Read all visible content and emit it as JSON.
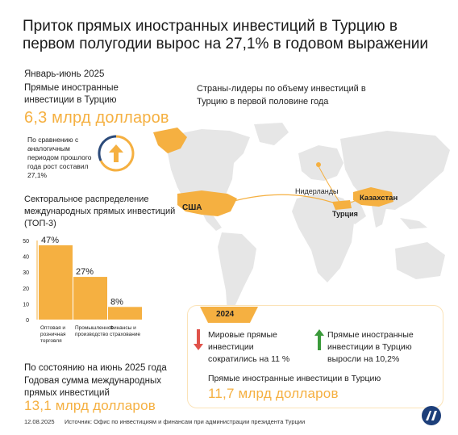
{
  "title": "Приток прямых иностранных инвестиций в Турцию в первом полугодии вырос на 27,1% в годовом выражении",
  "period_label": "Январь-июнь 2025",
  "fdi_label_line1": "Прямые иностранные",
  "fdi_label_line2": "инвестиции в Турцию",
  "fdi_value": "6,3 млрд долларов",
  "comparison_lines": [
    "По сравнению с",
    "аналогичным",
    "периодом прошлого",
    "года рост составил",
    "27,1%"
  ],
  "map_title_line1": "Страны-лидеры по объему инвестиций в",
  "map_title_line2": "Турцию в первой половине года",
  "countries": {
    "usa": "США",
    "netherlands": "Нидерланды",
    "kazakhstan": "Казахстан",
    "turkey": "Турция"
  },
  "chart_title_line1": "Секторальное распределение",
  "chart_title_line2": "международных прямых инвестиций",
  "chart_title_line3": "(ТОП-3)",
  "chart_data": {
    "type": "bar",
    "categories": [
      "Оптовая и розничная торговля",
      "Промышленное производство",
      "Финансы и страхование"
    ],
    "category_lines": [
      [
        "Оптовая и",
        "розничная",
        "торговля"
      ],
      [
        "Промышленное",
        "производство"
      ],
      [
        "Финансы и",
        "страхование"
      ]
    ],
    "values": [
      47,
      27,
      8
    ],
    "value_labels": [
      "47%",
      "27%",
      "8%"
    ],
    "yticks": [
      "50",
      "40",
      "30",
      "20",
      "10",
      "0"
    ],
    "ylim": [
      0,
      50
    ],
    "color": "#f5b041",
    "title": "Секторальное распределение международных прямых инвестиций (ТОП-3)"
  },
  "annual_label_line1": "По состоянию на июнь 2025 года",
  "annual_label_line2": "Годовая сумма международных",
  "annual_label_line3": "прямых инвестиций",
  "annual_value": "13,1 млрд долларов",
  "card": {
    "year": "2024",
    "world_line1": "Мировые прямые",
    "world_line2": "инвестиции",
    "world_line3": "сократились на 11 %",
    "turkey_line1": "Прямые иностранные",
    "turkey_line2": "инвестиции в Турцию",
    "turkey_line3": "выросли на 10,2%",
    "total_label": "Прямые иностранные инвестиции в Турцию",
    "total_value": "11,7 млрд долларов"
  },
  "footer": {
    "date": "12.08.2025",
    "source": "Источник:  Офис по инвестициям и финансам при администрации президента Турции"
  },
  "colors": {
    "accent": "#f5b041",
    "up": "#3a9a3a",
    "down": "#e0524a",
    "map_land": "#e6e6e6"
  }
}
